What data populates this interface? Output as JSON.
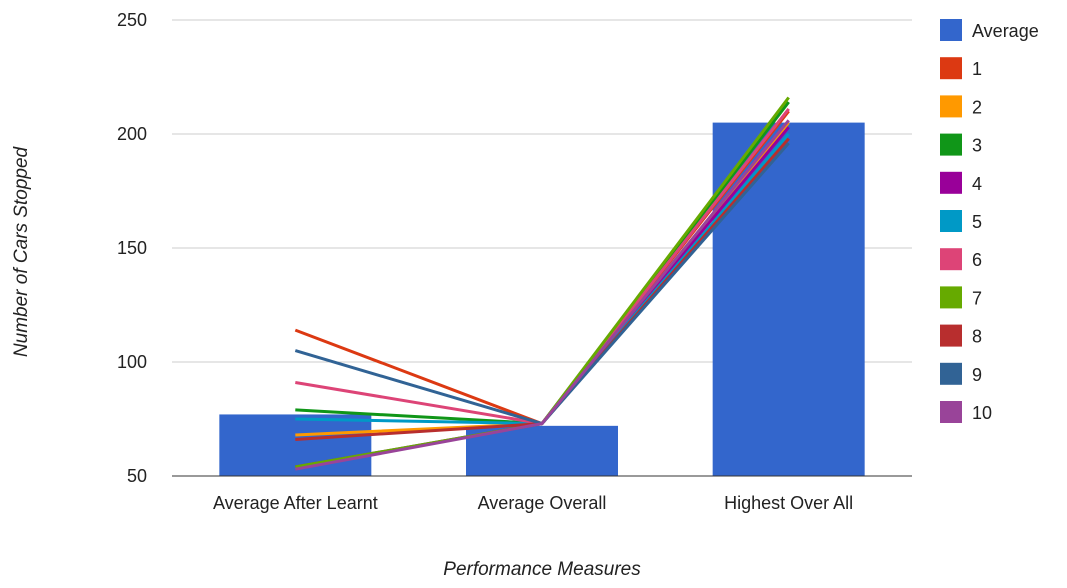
{
  "chart_data": {
    "type": "bar",
    "title": "",
    "xlabel": "Performance Measures",
    "ylabel": "Number of Cars Stopped",
    "ylim": [
      50,
      250
    ],
    "yticks": [
      50,
      100,
      150,
      200,
      250
    ],
    "grid": true,
    "legend_position": "right",
    "categories": [
      "Average After Learnt",
      "Average Overall",
      "Highest Over All"
    ],
    "bar_series": {
      "name": "Average",
      "color": "#3366cc",
      "values": [
        77,
        72,
        205
      ]
    },
    "line_series": [
      {
        "name": "1",
        "color": "#dc3912",
        "values": [
          114,
          73,
          210
        ]
      },
      {
        "name": "2",
        "color": "#ff9900",
        "values": [
          68,
          73,
          205
        ]
      },
      {
        "name": "3",
        "color": "#109618",
        "values": [
          79,
          73,
          214
        ]
      },
      {
        "name": "4",
        "color": "#990099",
        "values": [
          54,
          73,
          203
        ]
      },
      {
        "name": "5",
        "color": "#0099c6",
        "values": [
          75,
          73,
          200
        ]
      },
      {
        "name": "6",
        "color": "#dd4477",
        "values": [
          91,
          73,
          211
        ]
      },
      {
        "name": "7",
        "color": "#66aa00",
        "values": [
          54,
          73,
          216
        ]
      },
      {
        "name": "8",
        "color": "#b82e2e",
        "values": [
          66,
          73,
          198
        ]
      },
      {
        "name": "9",
        "color": "#316395",
        "values": [
          105,
          73,
          196
        ]
      },
      {
        "name": "10",
        "color": "#994499",
        "values": [
          53,
          73,
          206
        ]
      }
    ]
  }
}
